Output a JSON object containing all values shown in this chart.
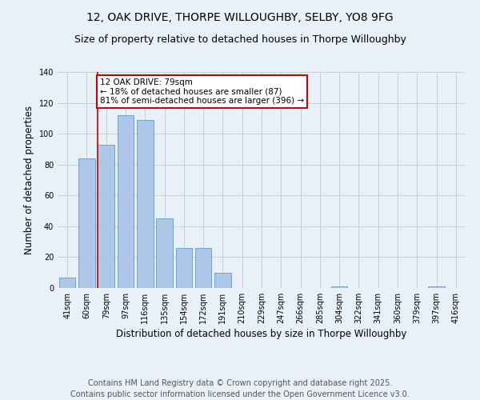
{
  "title1": "12, OAK DRIVE, THORPE WILLOUGHBY, SELBY, YO8 9FG",
  "title2": "Size of property relative to detached houses in Thorpe Willoughby",
  "xlabel": "Distribution of detached houses by size in Thorpe Willoughby",
  "ylabel": "Number of detached properties",
  "categories": [
    "41sqm",
    "60sqm",
    "79sqm",
    "97sqm",
    "116sqm",
    "135sqm",
    "154sqm",
    "172sqm",
    "191sqm",
    "210sqm",
    "229sqm",
    "247sqm",
    "266sqm",
    "285sqm",
    "304sqm",
    "322sqm",
    "341sqm",
    "360sqm",
    "379sqm",
    "397sqm",
    "416sqm"
  ],
  "values": [
    7,
    84,
    93,
    112,
    109,
    45,
    26,
    26,
    10,
    0,
    0,
    0,
    0,
    0,
    1,
    0,
    0,
    0,
    0,
    1,
    0
  ],
  "bar_color": "#aec6e8",
  "bar_edge_color": "#5b9bd5",
  "highlight_line_index": 2,
  "annotation_title": "12 OAK DRIVE: 79sqm",
  "annotation_line1": "← 18% of detached houses are smaller (87)",
  "annotation_line2": "81% of semi-detached houses are larger (396) →",
  "annotation_box_color": "#ffffff",
  "annotation_box_edge": "#cc0000",
  "highlight_line_color": "#cc0000",
  "grid_color": "#cccccc",
  "background_color": "#e8f0f8",
  "ylim": [
    0,
    140
  ],
  "yticks": [
    0,
    20,
    40,
    60,
    80,
    100,
    120,
    140
  ],
  "footer_line1": "Contains HM Land Registry data © Crown copyright and database right 2025.",
  "footer_line2": "Contains public sector information licensed under the Open Government Licence v3.0.",
  "title_fontsize": 10,
  "subtitle_fontsize": 9,
  "axis_label_fontsize": 8.5,
  "tick_fontsize": 7,
  "annotation_fontsize": 7.5,
  "footer_fontsize": 7
}
